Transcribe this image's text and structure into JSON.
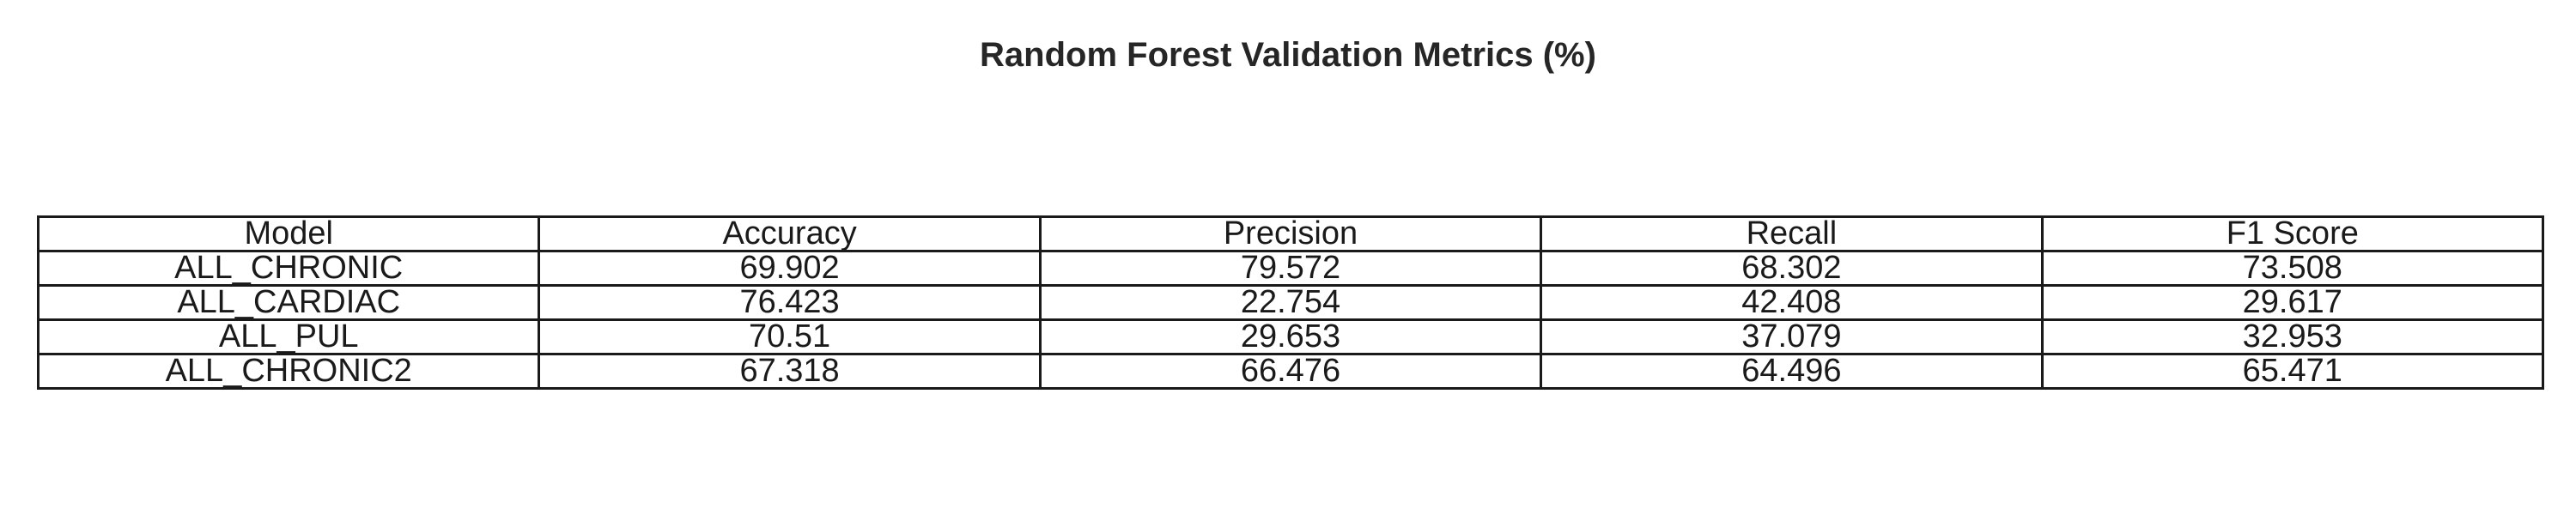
{
  "chart_data": {
    "type": "table",
    "title": "Random Forest Validation Metrics (%)",
    "columns": [
      "Model",
      "Accuracy",
      "Precision",
      "Recall",
      "F1 Score"
    ],
    "rows": [
      [
        "ALL_CHRONIC",
        "69.902",
        "79.572",
        "68.302",
        "73.508"
      ],
      [
        "ALL_CARDIAC",
        "76.423",
        "22.754",
        "42.408",
        "29.617"
      ],
      [
        "ALL_PUL",
        "70.51",
        "29.653",
        "37.079",
        "32.953"
      ],
      [
        "ALL_CHRONIC2",
        "67.318",
        "66.476",
        "64.496",
        "65.471"
      ]
    ]
  }
}
